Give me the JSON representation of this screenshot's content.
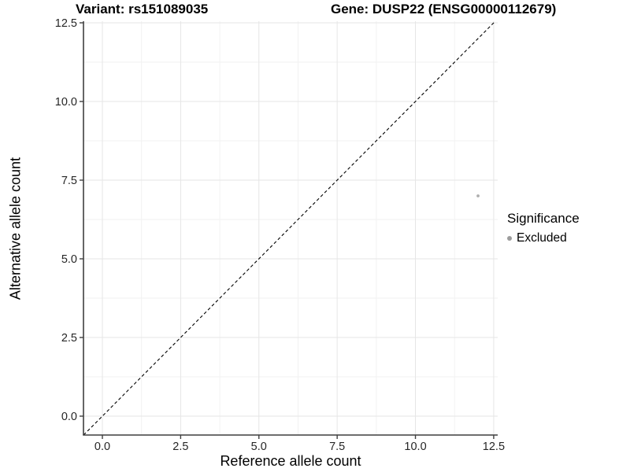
{
  "header": {
    "title_left": "Variant: rs151089035",
    "title_right": "Gene: DUSP22 (ENSG00000112679)"
  },
  "chart_data": {
    "type": "scatter",
    "title_left": "Variant: rs151089035",
    "title_right": "Gene: DUSP22 (ENSG00000112679)",
    "xlabel": "Reference allele count",
    "ylabel": "Alternative allele count",
    "xlim": [
      -0.604,
      12.628
    ],
    "ylim": [
      -0.6,
      12.55
    ],
    "x_ticks": [
      0,
      2.5,
      5,
      7.5,
      10,
      12.5
    ],
    "y_ticks": [
      0,
      2.5,
      5,
      7.5,
      10,
      12.5
    ],
    "x_tick_labels": [
      "0.0",
      "2.5",
      "5.0",
      "7.5",
      "10.0",
      "12.5"
    ],
    "y_tick_labels": [
      "0.0",
      "2.5",
      "5.0",
      "7.5",
      "10.0",
      "12.5"
    ],
    "grid": {
      "major": true,
      "minor": true
    },
    "points": [
      {
        "x": 12,
        "y": 7,
        "series": "Excluded"
      }
    ],
    "reference_line": {
      "kind": "identity",
      "style": "dashed",
      "color": "#000000"
    },
    "legend": {
      "title": "Significance",
      "position": "right",
      "items": [
        {
          "label": "Excluded",
          "color": "#9c9c9c",
          "marker": "point-icon"
        }
      ]
    },
    "colors": {
      "point": "#aeaeae",
      "legend_point": "#9c9c9c",
      "major_grid": "#e6e6e6",
      "minor_grid": "#f2f2f2",
      "axis_line": "#3f3f3f",
      "tick_text": "#262626",
      "background": "#ffffff"
    }
  }
}
